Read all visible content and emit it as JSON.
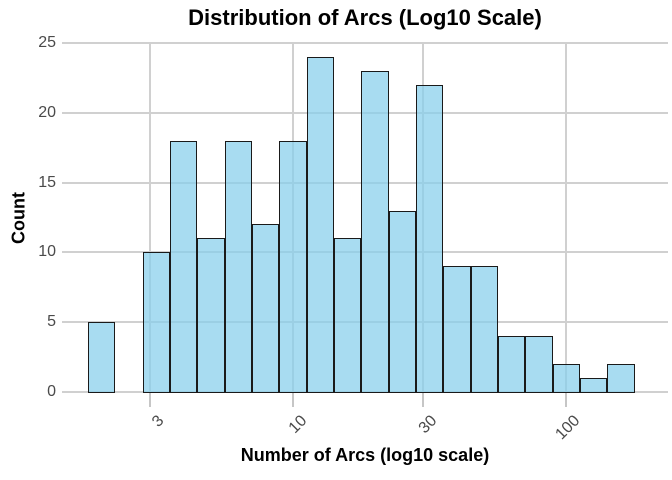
{
  "chart_data": {
    "type": "bar",
    "subtype": "histogram",
    "title": "Distribution of Arcs (Log10 Scale)",
    "xlabel": "Number of Arcs (log10 scale)",
    "ylabel": "Count",
    "x_scale": "log10",
    "bin_edges_log10": [
      0.25,
      0.35,
      0.45,
      0.55,
      0.65,
      0.75,
      0.85,
      0.95,
      1.05,
      1.15,
      1.25,
      1.35,
      1.45,
      1.55,
      1.65,
      1.75,
      1.85,
      1.95,
      2.05,
      2.15,
      2.25
    ],
    "counts": [
      5,
      0,
      10,
      18,
      11,
      18,
      12,
      18,
      24,
      11,
      23,
      13,
      22,
      9,
      9,
      4,
      4,
      2,
      1,
      2
    ],
    "x_ticks": [
      3,
      10,
      30,
      100
    ],
    "y_ticks": [
      0,
      5,
      10,
      15,
      20,
      25
    ],
    "ylim": [
      0,
      25
    ],
    "grid": true,
    "legend_position": "none",
    "colors": {
      "bar_fill": "rgba(135, 206, 235, 0.72)",
      "bar_edge": "#1a1a1a",
      "grid": "#d0d0d0",
      "tick_mark": "#c6c6c6",
      "tick_label": "#4a4a4a",
      "title_text": "#000000",
      "background": "#ffffff"
    }
  }
}
